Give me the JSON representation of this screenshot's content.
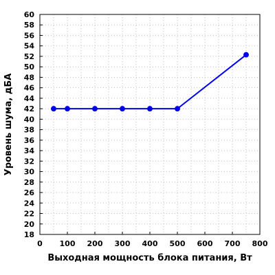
{
  "chart_data": {
    "type": "line",
    "title": "",
    "xlabel": "Выходная мощность блока питания, Вт",
    "ylabel": "Уровень шума, дБА",
    "xlim": [
      0,
      800
    ],
    "ylim": [
      18,
      60
    ],
    "x_ticks": [
      0,
      100,
      200,
      300,
      400,
      500,
      600,
      700,
      800
    ],
    "y_ticks": [
      18,
      20,
      22,
      24,
      26,
      28,
      30,
      32,
      34,
      36,
      38,
      40,
      42,
      44,
      46,
      48,
      50,
      52,
      54,
      56,
      58,
      60
    ],
    "x_minor_step": 50,
    "grid": true,
    "legend": false,
    "series": [
      {
        "color": "#0000ee",
        "x": [
          50,
          100,
          200,
          300,
          400,
          500,
          750
        ],
        "y": [
          42,
          42,
          42,
          42,
          42,
          42,
          52.3
        ]
      }
    ]
  }
}
